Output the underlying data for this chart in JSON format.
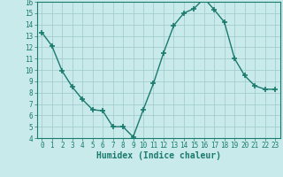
{
  "x": [
    0,
    1,
    2,
    3,
    4,
    5,
    6,
    7,
    8,
    9,
    10,
    11,
    12,
    13,
    14,
    15,
    16,
    17,
    18,
    19,
    20,
    21,
    22,
    23
  ],
  "y": [
    13.3,
    12.1,
    9.9,
    8.5,
    7.4,
    6.5,
    6.4,
    5.0,
    5.0,
    4.1,
    6.5,
    8.8,
    11.5,
    13.9,
    15.0,
    15.4,
    16.3,
    15.3,
    14.2,
    11.0,
    9.5,
    8.6,
    8.3,
    8.3
  ],
  "line_color": "#1a7a6e",
  "marker": "+",
  "marker_size": 4,
  "bg_color": "#c8eaea",
  "grid_color": "#9ec8c8",
  "xlabel": "Humidex (Indice chaleur)",
  "ylim": [
    4,
    16
  ],
  "xlim": [
    -0.5,
    23.5
  ],
  "yticks": [
    4,
    5,
    6,
    7,
    8,
    9,
    10,
    11,
    12,
    13,
    14,
    15,
    16
  ],
  "xticks": [
    0,
    1,
    2,
    3,
    4,
    5,
    6,
    7,
    8,
    9,
    10,
    11,
    12,
    13,
    14,
    15,
    16,
    17,
    18,
    19,
    20,
    21,
    22,
    23
  ],
  "tick_label_fontsize": 5.5,
  "xlabel_fontsize": 7.0,
  "axis_color": "#1a7a6e"
}
